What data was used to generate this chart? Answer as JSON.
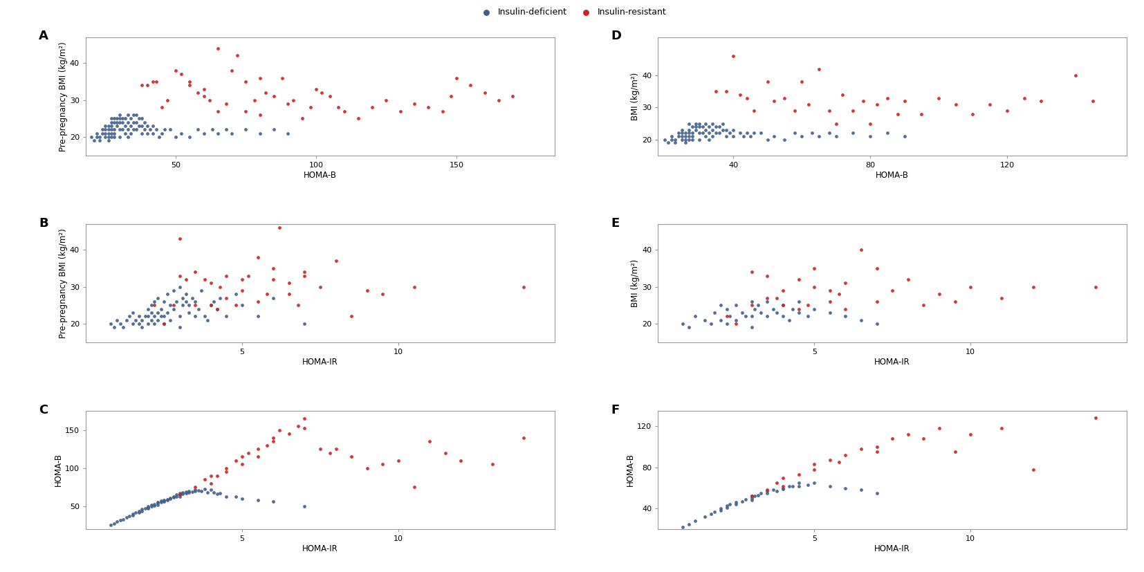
{
  "blue_color": "#3F5F8F",
  "red_color": "#CC2222",
  "background_color": "#ffffff",
  "panels": {
    "A": {
      "xlabel": "HOMA-B",
      "ylabel": "Pre-pregnancy BMI (kg/m²)",
      "xlim": [
        18,
        185
      ],
      "ylim": [
        15,
        47
      ],
      "xticks": [
        50,
        100,
        150
      ],
      "yticks": [
        20,
        30,
        40
      ],
      "blue_x": [
        20,
        21,
        22,
        22,
        23,
        23,
        24,
        24,
        25,
        25,
        25,
        25,
        26,
        26,
        26,
        26,
        26,
        27,
        27,
        27,
        27,
        27,
        27,
        28,
        28,
        28,
        28,
        28,
        29,
        29,
        29,
        30,
        30,
        30,
        30,
        30,
        31,
        31,
        31,
        32,
        32,
        32,
        33,
        33,
        33,
        33,
        34,
        34,
        34,
        35,
        35,
        35,
        36,
        36,
        36,
        37,
        37,
        38,
        38,
        38,
        39,
        39,
        40,
        40,
        41,
        42,
        42,
        43,
        44,
        45,
        46,
        48,
        50,
        52,
        55,
        58,
        60,
        63,
        65,
        68,
        70,
        75,
        80,
        85,
        90
      ],
      "blue_y": [
        20,
        19,
        20,
        21,
        19,
        20,
        21,
        22,
        20,
        21,
        22,
        23,
        19,
        20,
        21,
        22,
        23,
        20,
        21,
        22,
        23,
        24,
        25,
        20,
        21,
        22,
        24,
        25,
        23,
        24,
        25,
        20,
        22,
        24,
        25,
        26,
        22,
        24,
        25,
        21,
        23,
        25,
        20,
        22,
        24,
        26,
        21,
        23,
        25,
        22,
        24,
        26,
        22,
        24,
        26,
        23,
        25,
        21,
        23,
        25,
        22,
        24,
        21,
        23,
        22,
        21,
        23,
        22,
        20,
        21,
        22,
        22,
        20,
        21,
        20,
        22,
        21,
        22,
        21,
        22,
        21,
        22,
        21,
        22,
        21
      ],
      "red_x": [
        38,
        40,
        42,
        43,
        45,
        47,
        50,
        52,
        55,
        55,
        58,
        60,
        60,
        62,
        65,
        65,
        68,
        70,
        72,
        75,
        75,
        78,
        80,
        80,
        82,
        85,
        88,
        90,
        92,
        95,
        98,
        100,
        102,
        105,
        108,
        110,
        115,
        120,
        125,
        130,
        135,
        140,
        145,
        148,
        150,
        155,
        160,
        165,
        170
      ],
      "red_y": [
        34,
        34,
        35,
        35,
        28,
        30,
        38,
        37,
        35,
        34,
        32,
        33,
        31,
        30,
        44,
        27,
        29,
        38,
        42,
        27,
        35,
        30,
        36,
        26,
        32,
        31,
        36,
        29,
        30,
        25,
        28,
        33,
        32,
        31,
        28,
        27,
        25,
        28,
        30,
        27,
        29,
        28,
        27,
        31,
        36,
        34,
        32,
        30,
        31
      ]
    },
    "B": {
      "xlabel": "HOMA-IR",
      "ylabel": "Pre-pregnancy BMI (kg/m²)",
      "xlim": [
        0,
        15
      ],
      "ylim": [
        15,
        47
      ],
      "xticks": [
        5,
        10
      ],
      "yticks": [
        20,
        30,
        40
      ],
      "blue_x": [
        0.8,
        0.9,
        1.0,
        1.1,
        1.2,
        1.3,
        1.4,
        1.5,
        1.5,
        1.6,
        1.7,
        1.7,
        1.8,
        1.8,
        1.9,
        2.0,
        2.0,
        2.0,
        2.1,
        2.1,
        2.1,
        2.2,
        2.2,
        2.2,
        2.3,
        2.3,
        2.3,
        2.4,
        2.4,
        2.5,
        2.5,
        2.5,
        2.6,
        2.6,
        2.7,
        2.7,
        2.8,
        2.8,
        2.9,
        3.0,
        3.0,
        3.0,
        3.1,
        3.1,
        3.2,
        3.2,
        3.3,
        3.3,
        3.4,
        3.5,
        3.5,
        3.6,
        3.7,
        3.8,
        3.9,
        4.0,
        4.1,
        4.2,
        4.3,
        4.5,
        4.8,
        5.0,
        5.5,
        6.0,
        7.0
      ],
      "blue_y": [
        20,
        19,
        21,
        20,
        19,
        21,
        22,
        20,
        23,
        21,
        20,
        22,
        19,
        21,
        22,
        20,
        22,
        24,
        21,
        23,
        25,
        20,
        22,
        26,
        21,
        23,
        27,
        22,
        24,
        20,
        22,
        26,
        23,
        28,
        21,
        25,
        24,
        29,
        26,
        19,
        22,
        30,
        25,
        27,
        26,
        28,
        23,
        25,
        27,
        22,
        26,
        24,
        29,
        22,
        21,
        25,
        26,
        24,
        27,
        22,
        28,
        25,
        22,
        27,
        20
      ],
      "red_x": [
        2.2,
        2.5,
        2.8,
        3.0,
        3.0,
        3.2,
        3.5,
        3.5,
        3.8,
        4.0,
        4.0,
        4.2,
        4.3,
        4.5,
        4.5,
        4.8,
        5.0,
        5.0,
        5.2,
        5.5,
        5.5,
        5.8,
        6.0,
        6.0,
        6.2,
        6.5,
        6.5,
        6.8,
        7.0,
        7.0,
        7.5,
        8.0,
        8.5,
        9.0,
        9.5,
        10.5,
        14.0
      ],
      "red_y": [
        25,
        20,
        25,
        33,
        43,
        32,
        34,
        25,
        32,
        31,
        25,
        24,
        30,
        27,
        33,
        25,
        32,
        29,
        33,
        26,
        38,
        28,
        35,
        32,
        46,
        28,
        31,
        25,
        34,
        33,
        30,
        37,
        22,
        29,
        28,
        30,
        30
      ]
    },
    "C": {
      "xlabel": "HOMA-IR",
      "ylabel": "HOMA-B",
      "xlim": [
        0,
        15
      ],
      "ylim": [
        20,
        175
      ],
      "xticks": [
        5,
        10
      ],
      "yticks": [
        50,
        100,
        150
      ],
      "blue_x": [
        0.8,
        0.9,
        1.0,
        1.1,
        1.2,
        1.3,
        1.4,
        1.5,
        1.5,
        1.6,
        1.7,
        1.7,
        1.8,
        1.8,
        1.9,
        2.0,
        2.0,
        2.0,
        2.1,
        2.1,
        2.2,
        2.2,
        2.3,
        2.3,
        2.3,
        2.4,
        2.4,
        2.5,
        2.5,
        2.5,
        2.6,
        2.6,
        2.7,
        2.7,
        2.8,
        2.8,
        2.9,
        2.9,
        3.0,
        3.0,
        3.0,
        3.1,
        3.1,
        3.2,
        3.2,
        3.3,
        3.3,
        3.4,
        3.5,
        3.5,
        3.6,
        3.7,
        3.8,
        3.9,
        4.0,
        4.1,
        4.2,
        4.3,
        4.5,
        4.8,
        5.0,
        5.5,
        6.0,
        7.0
      ],
      "blue_y": [
        25,
        27,
        30,
        32,
        33,
        35,
        37,
        38,
        40,
        42,
        44,
        42,
        44,
        46,
        47,
        47,
        48,
        50,
        50,
        52,
        51,
        53,
        52,
        54,
        55,
        55,
        57,
        56,
        58,
        57,
        59,
        58,
        60,
        61,
        62,
        63,
        63,
        65,
        65,
        63,
        67,
        66,
        68,
        67,
        69,
        68,
        70,
        69,
        70,
        72,
        71,
        70,
        73,
        68,
        72,
        68,
        66,
        67,
        63,
        63,
        60,
        58,
        56,
        50
      ],
      "red_x": [
        3.0,
        3.5,
        3.8,
        4.0,
        4.0,
        4.2,
        4.5,
        4.5,
        4.8,
        5.0,
        5.0,
        5.2,
        5.5,
        5.5,
        5.8,
        6.0,
        6.0,
        6.2,
        6.5,
        6.8,
        7.0,
        7.0,
        7.5,
        7.8,
        8.0,
        8.5,
        9.0,
        9.5,
        10.0,
        10.5,
        11.0,
        11.5,
        12.0,
        13.0,
        14.0
      ],
      "red_y": [
        65,
        75,
        85,
        80,
        90,
        90,
        95,
        100,
        110,
        105,
        115,
        120,
        125,
        115,
        130,
        135,
        140,
        150,
        145,
        155,
        165,
        152,
        125,
        120,
        125,
        115,
        100,
        105,
        110,
        75,
        135,
        120,
        110,
        105,
        140
      ]
    },
    "D": {
      "xlabel": "HOMA-B",
      "ylabel": "BMI (kg/m²)",
      "xlim": [
        18,
        155
      ],
      "ylim": [
        15,
        52
      ],
      "xticks": [
        40,
        80,
        120
      ],
      "yticks": [
        20,
        30,
        40
      ],
      "blue_x": [
        20,
        21,
        22,
        22,
        23,
        23,
        24,
        24,
        25,
        25,
        25,
        25,
        26,
        26,
        26,
        26,
        27,
        27,
        27,
        27,
        27,
        28,
        28,
        28,
        28,
        29,
        29,
        29,
        30,
        30,
        30,
        30,
        31,
        31,
        32,
        32,
        32,
        33,
        33,
        33,
        34,
        34,
        34,
        35,
        35,
        36,
        36,
        37,
        37,
        38,
        38,
        39,
        40,
        40,
        42,
        43,
        44,
        45,
        46,
        48,
        50,
        52,
        55,
        58,
        60,
        63,
        65,
        68,
        70,
        75,
        80,
        85,
        90
      ],
      "blue_y": [
        20,
        19,
        20,
        21,
        19,
        20,
        21,
        22,
        20,
        21,
        22,
        23,
        19,
        20,
        21,
        22,
        20,
        21,
        22,
        23,
        25,
        20,
        21,
        22,
        24,
        23,
        24,
        25,
        20,
        22,
        24,
        25,
        22,
        24,
        21,
        23,
        25,
        20,
        22,
        24,
        21,
        23,
        25,
        22,
        24,
        22,
        24,
        23,
        25,
        21,
        23,
        22,
        21,
        23,
        22,
        21,
        22,
        21,
        22,
        22,
        20,
        21,
        20,
        22,
        21,
        22,
        21,
        22,
        21,
        22,
        21,
        22,
        21
      ],
      "red_x": [
        35,
        38,
        40,
        42,
        44,
        46,
        50,
        52,
        55,
        58,
        60,
        62,
        65,
        68,
        70,
        72,
        75,
        78,
        80,
        82,
        85,
        88,
        90,
        95,
        100,
        105,
        110,
        115,
        120,
        125,
        130,
        140,
        145
      ],
      "red_y": [
        35,
        35,
        46,
        34,
        33,
        29,
        38,
        32,
        33,
        29,
        38,
        31,
        42,
        29,
        25,
        34,
        29,
        32,
        25,
        31,
        33,
        28,
        32,
        28,
        33,
        31,
        28,
        31,
        29,
        33,
        32,
        40,
        32
      ]
    },
    "E": {
      "xlabel": "HOMA-IR",
      "ylabel": "BMI (kg/m²)",
      "xlim": [
        0,
        15
      ],
      "ylim": [
        15,
        47
      ],
      "xticks": [
        5,
        10
      ],
      "yticks": [
        20,
        30,
        40
      ],
      "blue_x": [
        0.8,
        1.0,
        1.2,
        1.5,
        1.7,
        1.8,
        2.0,
        2.0,
        2.2,
        2.2,
        2.3,
        2.5,
        2.5,
        2.7,
        2.8,
        3.0,
        3.0,
        3.0,
        3.1,
        3.2,
        3.3,
        3.5,
        3.5,
        3.7,
        3.8,
        4.0,
        4.0,
        4.2,
        4.3,
        4.5,
        4.5,
        4.8,
        5.0,
        5.5,
        6.0,
        6.5,
        7.0
      ],
      "blue_y": [
        20,
        19,
        22,
        21,
        20,
        23,
        21,
        25,
        20,
        24,
        22,
        21,
        25,
        23,
        22,
        19,
        22,
        26,
        24,
        25,
        23,
        22,
        26,
        24,
        23,
        25,
        22,
        21,
        24,
        23,
        26,
        22,
        24,
        23,
        22,
        21,
        20
      ],
      "red_x": [
        2.2,
        2.5,
        3.0,
        3.0,
        3.5,
        3.5,
        3.8,
        4.0,
        4.0,
        4.5,
        4.5,
        4.8,
        5.0,
        5.0,
        5.5,
        5.5,
        5.8,
        6.0,
        6.0,
        6.5,
        7.0,
        7.0,
        7.5,
        8.0,
        8.5,
        9.0,
        9.5,
        10.0,
        11.0,
        12.0,
        14.0
      ],
      "red_y": [
        22,
        20,
        25,
        34,
        27,
        33,
        27,
        25,
        29,
        24,
        32,
        25,
        30,
        35,
        26,
        29,
        28,
        24,
        31,
        40,
        26,
        35,
        29,
        32,
        25,
        28,
        26,
        30,
        27,
        30,
        30
      ]
    },
    "F": {
      "xlabel": "HOMA-IR",
      "ylabel": "HOMA-B",
      "xlim": [
        0,
        15
      ],
      "ylim": [
        20,
        135
      ],
      "xticks": [
        5,
        10
      ],
      "yticks": [
        40,
        80,
        120
      ],
      "blue_x": [
        0.8,
        1.0,
        1.2,
        1.5,
        1.7,
        1.8,
        2.0,
        2.0,
        2.2,
        2.2,
        2.3,
        2.5,
        2.5,
        2.7,
        2.8,
        3.0,
        3.0,
        3.0,
        3.1,
        3.2,
        3.3,
        3.5,
        3.5,
        3.7,
        3.8,
        4.0,
        4.0,
        4.2,
        4.3,
        4.5,
        4.5,
        4.8,
        5.0,
        5.5,
        6.0,
        6.5,
        7.0
      ],
      "blue_y": [
        22,
        25,
        28,
        32,
        35,
        37,
        38,
        40,
        41,
        43,
        44,
        44,
        46,
        47,
        49,
        48,
        50,
        52,
        52,
        53,
        55,
        55,
        57,
        58,
        57,
        60,
        59,
        62,
        62,
        62,
        65,
        63,
        65,
        62,
        60,
        58,
        55
      ],
      "red_x": [
        3.0,
        3.5,
        3.8,
        4.0,
        4.0,
        4.5,
        5.0,
        5.0,
        5.5,
        5.8,
        6.0,
        6.5,
        7.0,
        7.0,
        7.5,
        8.0,
        8.5,
        9.0,
        9.5,
        10.0,
        11.0,
        12.0,
        14.0
      ],
      "red_y": [
        52,
        58,
        65,
        62,
        70,
        73,
        78,
        83,
        87,
        85,
        92,
        98,
        100,
        95,
        108,
        112,
        108,
        118,
        95,
        112,
        118,
        78,
        128
      ]
    }
  }
}
